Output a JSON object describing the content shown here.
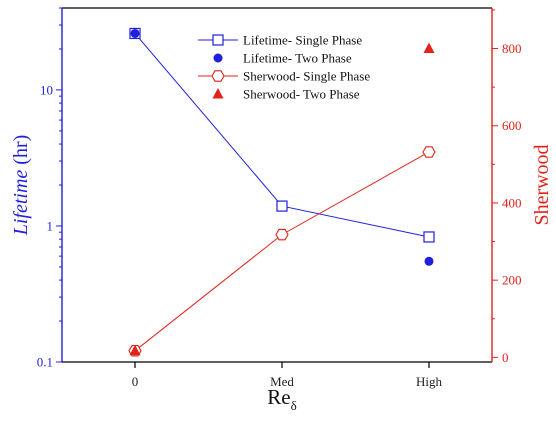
{
  "chart_data": {
    "type": "line",
    "categories": [
      "0",
      "Med",
      "High"
    ],
    "x_axis": {
      "label": "Re",
      "label_subscript": "δ",
      "tick_labels": [
        "0",
        "Med",
        "High"
      ]
    },
    "y_left": {
      "label_italic": "Lifetime",
      "label_rest": " (hr)",
      "scale": "log",
      "range": [
        0.1,
        40
      ],
      "tick_values": [
        0.1,
        1,
        10
      ],
      "tick_labels": [
        "0.1",
        "1",
        "10"
      ],
      "color": "#1f1fdc"
    },
    "y_right": {
      "label": "Sherwood",
      "scale": "linear",
      "range": [
        -12,
        905
      ],
      "tick_values": [
        0,
        200,
        400,
        600,
        800
      ],
      "tick_labels": [
        "0",
        "200",
        "400",
        "600",
        "800"
      ],
      "color": "#e2231a"
    },
    "series": [
      {
        "name": "Lifetime- Single Phase",
        "axis": "left",
        "marker": "open-square",
        "line": true,
        "color": "#1f1fdc",
        "values": [
          26,
          1.4,
          0.83
        ]
      },
      {
        "name": "Lifetime- Two Phase",
        "axis": "left",
        "marker": "filled-circle",
        "line": false,
        "color": "#1f1fdc",
        "values": [
          26,
          null,
          0.55
        ]
      },
      {
        "name": "Sherwood- Single Phase",
        "axis": "right",
        "marker": "open-hexagon",
        "line": true,
        "color": "#e2231a",
        "values": [
          17,
          318,
          532
        ]
      },
      {
        "name": "Sherwood- Two Phase",
        "axis": "right",
        "marker": "filled-triangle",
        "line": false,
        "color": "#e2231a",
        "values": [
          17,
          null,
          800
        ]
      }
    ],
    "legend_position": "top-center",
    "grid": false
  }
}
